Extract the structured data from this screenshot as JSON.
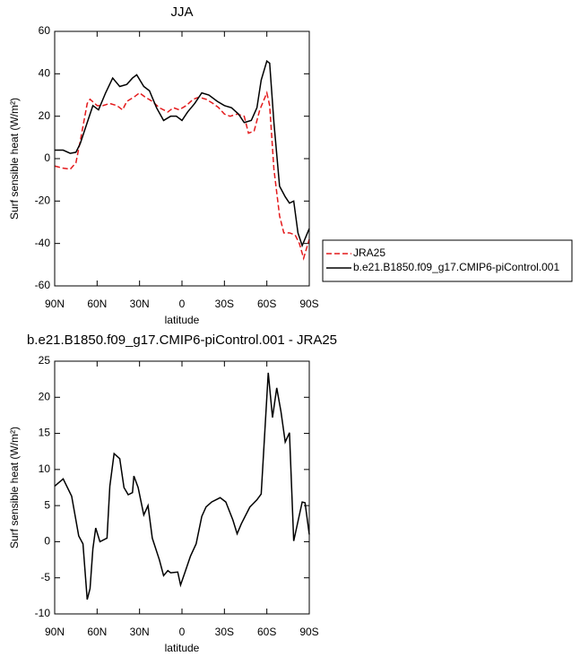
{
  "chart_data": [
    {
      "type": "line",
      "title": "JJA",
      "xlabel": "latitude",
      "ylabel": "Surf sensible heat (W/m²)",
      "xlim": [
        90,
        -90
      ],
      "xticks": [
        {
          "value": 90,
          "label": "90N"
        },
        {
          "value": 60,
          "label": "60N"
        },
        {
          "value": 30,
          "label": "30N"
        },
        0,
        {
          "value": -30,
          "label": "30S"
        },
        {
          "value": -60,
          "label": "60S"
        },
        {
          "value": -90,
          "label": "90S"
        }
      ],
      "ylim": [
        -60,
        60
      ],
      "yticks": [
        -60,
        -40,
        -20,
        0,
        20,
        40,
        60
      ],
      "legend": "right",
      "series": [
        {
          "name": "JRA25",
          "color": "#e41a1c",
          "line_style": "dashed",
          "x": [
            90,
            84,
            79,
            75,
            72,
            67,
            65,
            60,
            56,
            51,
            46,
            42,
            39,
            34,
            30,
            26,
            21,
            16,
            10,
            6,
            2,
            -3,
            -8,
            -12,
            -17,
            -22,
            -26,
            -30,
            -34,
            -39,
            -44,
            -47,
            -51,
            -55,
            -60,
            -62,
            -65,
            -69,
            -72,
            -76,
            -80,
            -83,
            -86,
            -90
          ],
          "values": [
            -3.5,
            -4.5,
            -5,
            -2,
            8,
            26,
            28,
            25,
            25,
            26,
            25,
            23,
            27,
            29,
            31,
            29,
            27,
            24,
            22,
            24,
            23,
            25,
            28,
            29,
            28,
            26,
            24,
            21,
            20,
            21,
            20,
            12,
            13,
            23,
            31,
            25,
            -5,
            -27,
            -35,
            -35,
            -36,
            -40,
            -47,
            -38
          ]
        },
        {
          "name": "b.e21.B1850.f09_g17.CMIP6-piControl.001",
          "color": "#000000",
          "line_style": "solid",
          "x": [
            90,
            84,
            79,
            75,
            72,
            67,
            63,
            59,
            54,
            49,
            44,
            39,
            35,
            32,
            27,
            23,
            18,
            13,
            8,
            4,
            0,
            -4,
            -9,
            -14,
            -19,
            -25,
            -30,
            -35,
            -40,
            -44,
            -49,
            -53,
            -56,
            -60,
            -62,
            -65,
            -69,
            -73,
            -76,
            -79,
            -82,
            -85,
            -90
          ],
          "values": [
            4,
            4,
            2.5,
            3,
            7,
            17,
            25,
            23,
            31,
            38,
            34,
            35,
            38,
            39.5,
            34,
            32,
            24,
            18,
            20,
            20,
            18,
            22,
            26,
            31,
            30,
            27,
            25,
            24,
            21,
            17,
            18,
            24,
            37,
            46,
            45,
            17,
            -13,
            -18,
            -21,
            -20,
            -35,
            -41,
            -33
          ]
        }
      ]
    },
    {
      "type": "line",
      "title": "b.e21.B1850.f09_g17.CMIP6-piControl.001 - JRA25",
      "xlabel": "latitude",
      "ylabel": "Surf sensible heat (W/m²)",
      "xlim": [
        90,
        -90
      ],
      "xticks": [
        {
          "value": 90,
          "label": "90N"
        },
        {
          "value": 60,
          "label": "60N"
        },
        {
          "value": 30,
          "label": "30N"
        },
        0,
        {
          "value": -30,
          "label": "30S"
        },
        {
          "value": -60,
          "label": "60S"
        },
        {
          "value": -90,
          "label": "90S"
        }
      ],
      "ylim": [
        -10,
        25
      ],
      "yticks": [
        -10,
        -5,
        0,
        5,
        10,
        15,
        20,
        25
      ],
      "series": [
        {
          "color": "#000000",
          "line_style": "solid",
          "x": [
            90,
            84,
            78,
            73,
            70,
            67,
            65,
            63,
            61,
            58,
            53,
            51,
            48,
            44,
            41,
            38,
            35,
            34,
            31,
            27,
            24,
            21,
            16,
            13,
            10,
            8,
            3,
            1,
            -2,
            -6,
            -10,
            -14,
            -17,
            -21,
            -27,
            -31,
            -36,
            -39,
            -42,
            -48,
            -53,
            -56,
            -61,
            -64,
            -67,
            -70,
            -73,
            -76,
            -79,
            -85,
            -87,
            -90
          ],
          "values": [
            7.7,
            8.7,
            6.3,
            0.8,
            -0.3,
            -8,
            -6.5,
            -1,
            1.9,
            0,
            0.5,
            7.7,
            12.2,
            11.5,
            7.5,
            6.5,
            6.8,
            9.1,
            7.5,
            3.7,
            5,
            0.5,
            -2.5,
            -4.7,
            -4,
            -4.3,
            -4.2,
            -6,
            -4.3,
            -2,
            -0.3,
            3.5,
            4.8,
            5.5,
            6.1,
            5.5,
            3,
            1.1,
            2.5,
            4.8,
            5.8,
            6.6,
            23.4,
            17.2,
            21.3,
            18,
            13.8,
            15.1,
            0.1,
            5.5,
            5.4,
            1
          ]
        }
      ]
    }
  ]
}
